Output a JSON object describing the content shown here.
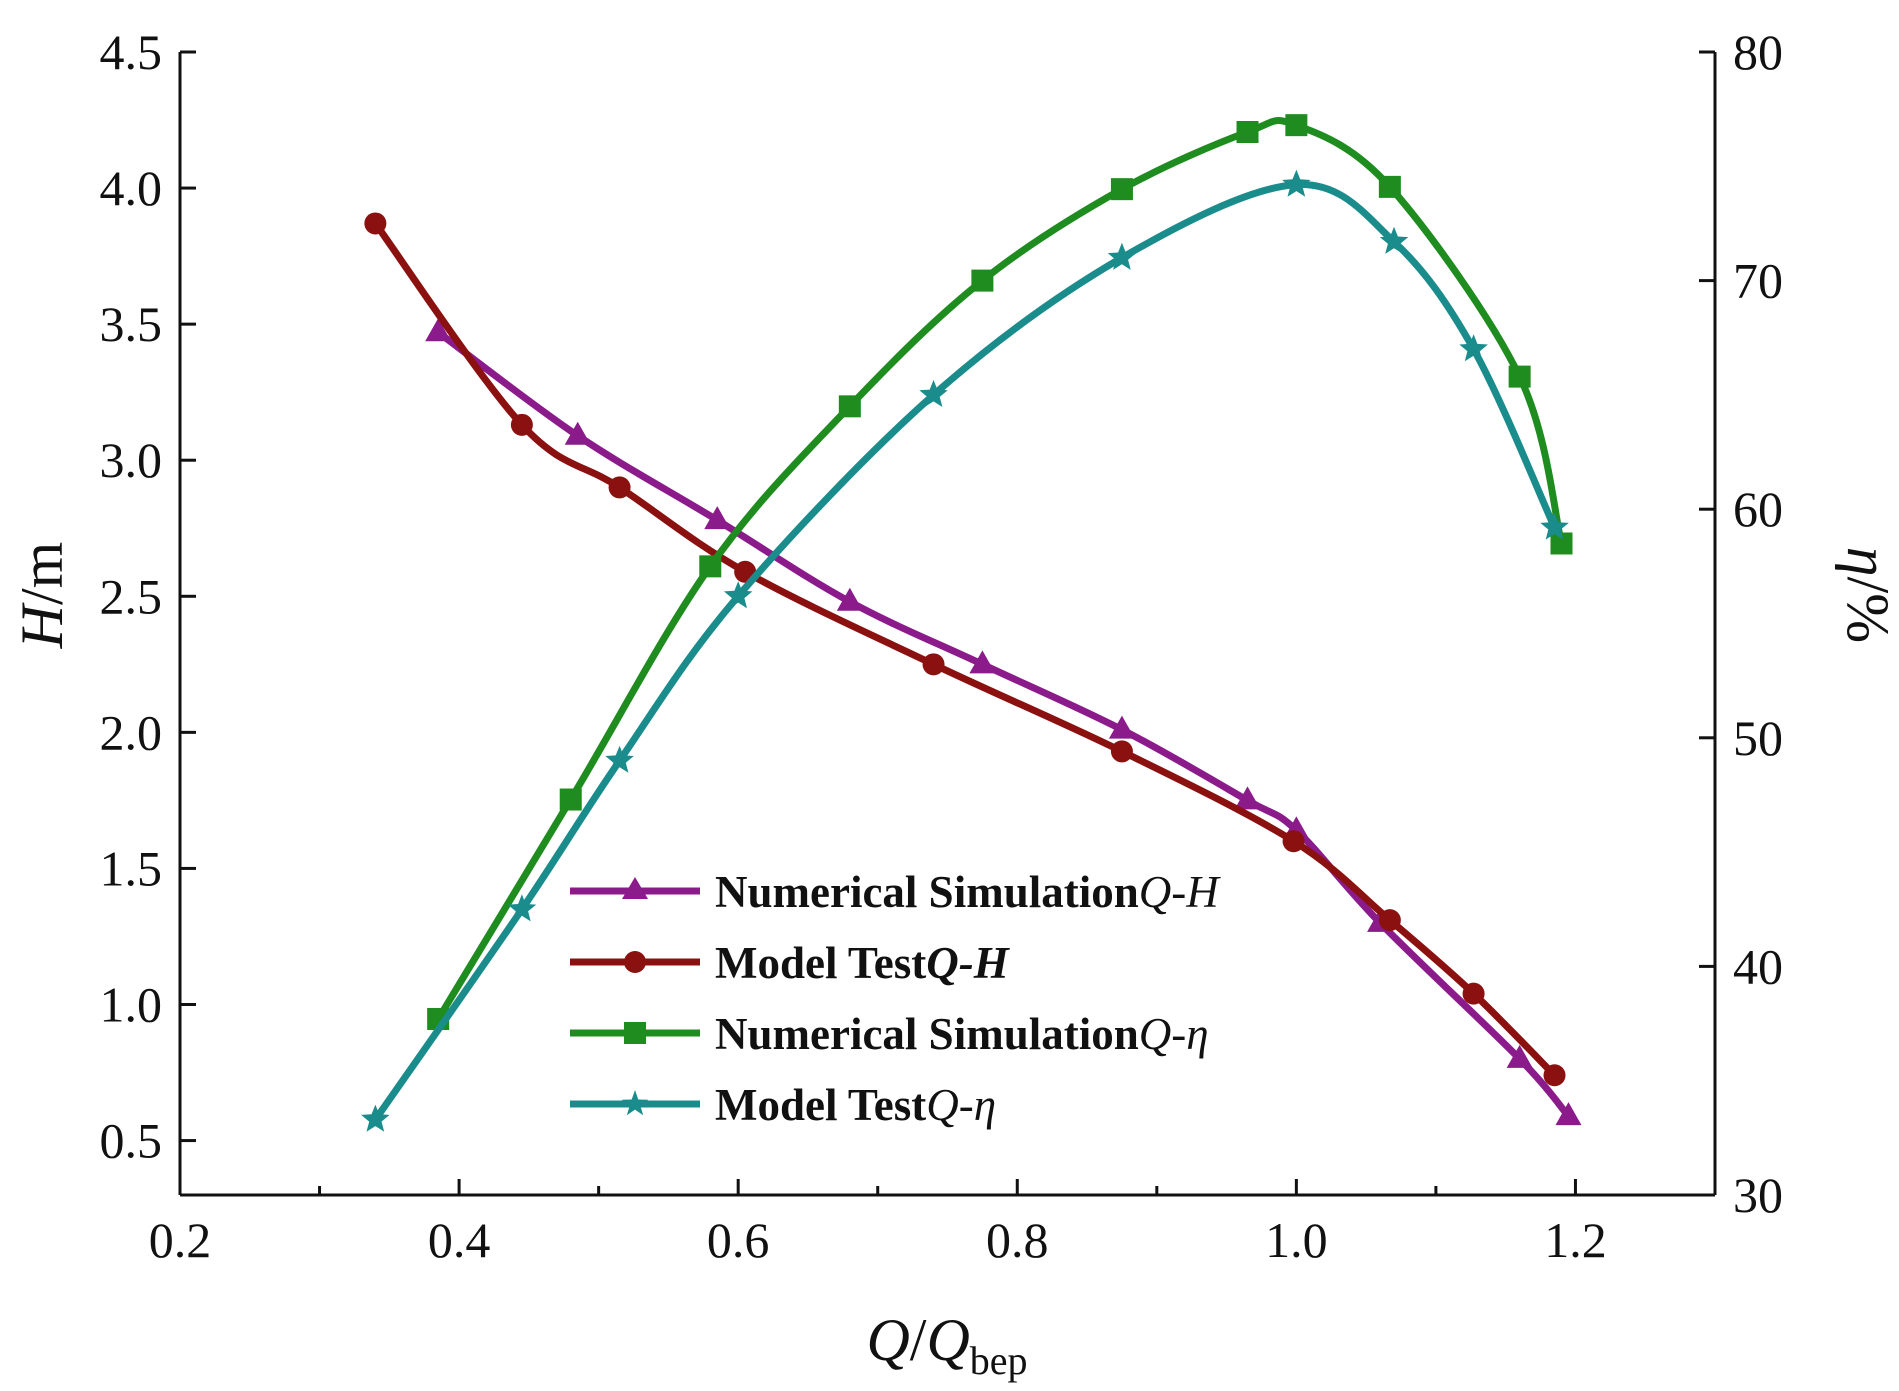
{
  "chart_data": {
    "type": "line",
    "x_axis": {
      "label_main": "Q",
      "label_slash": "/",
      "label_denominator": "Q",
      "label_subscript": "bep",
      "range": [
        0.2,
        1.3
      ],
      "major_ticks": [
        0.2,
        0.4,
        0.6,
        0.8,
        1.0,
        1.2
      ],
      "tick_labels": [
        "0.2",
        "0.4",
        "0.6",
        "0.8",
        "1.0",
        "1.2"
      ],
      "minor_ticks": [
        0.3,
        0.5,
        0.7,
        0.9,
        1.1
      ]
    },
    "y_left_axis": {
      "label_var": "H",
      "label_unit": "/m",
      "range": [
        0.3,
        4.5
      ],
      "major_ticks": [
        0.5,
        1.0,
        1.5,
        2.0,
        2.5,
        3.0,
        3.5,
        4.0,
        4.5
      ],
      "tick_labels": [
        "0.5",
        "1.0",
        "1.5",
        "2.0",
        "2.5",
        "3.0",
        "3.5",
        "4.0",
        "4.5"
      ]
    },
    "y_right_axis": {
      "label_var": "η",
      "label_unit": "/%",
      "range": [
        30,
        80
      ],
      "major_ticks": [
        30,
        40,
        50,
        60,
        70,
        80
      ],
      "tick_labels": [
        "30",
        "40",
        "50",
        "60",
        "70",
        "80"
      ]
    },
    "series": [
      {
        "name": "Numerical Simulation Q-H",
        "legend_text": "Numerical Simulation",
        "legend_suffix": "Q-H",
        "color": "#8b1a8b",
        "marker": "triangle",
        "axis": "left",
        "x": [
          0.385,
          0.485,
          0.585,
          0.68,
          0.775,
          0.875,
          0.965,
          1.0,
          1.06,
          1.16,
          1.195
        ],
        "y": [
          3.47,
          3.09,
          2.78,
          2.48,
          2.25,
          2.01,
          1.75,
          1.64,
          1.3,
          0.8,
          0.59
        ]
      },
      {
        "name": "Model Test Q-H",
        "legend_text": "Model Test",
        "legend_suffix": "Q-H",
        "color": "#8b1010",
        "marker": "circle",
        "axis": "left",
        "x": [
          0.34,
          0.445,
          0.515,
          0.605,
          0.74,
          0.875,
          0.998,
          1.067,
          1.127,
          1.185
        ],
        "y": [
          3.87,
          3.13,
          2.9,
          2.59,
          2.25,
          1.93,
          1.6,
          1.31,
          1.04,
          0.74
        ]
      },
      {
        "name": "Numerical Simulation Q-η",
        "legend_text": "Numerical Simulation",
        "legend_suffix": "Q-η",
        "color": "#1e8c1e",
        "marker": "square",
        "axis": "right",
        "x": [
          0.385,
          0.48,
          0.58,
          0.68,
          0.775,
          0.875,
          0.965,
          1.0,
          1.067,
          1.16,
          1.19
        ],
        "y": [
          37.7,
          47.3,
          57.5,
          64.5,
          70.0,
          74.0,
          76.5,
          76.8,
          74.1,
          65.8,
          58.5
        ]
      },
      {
        "name": "Model Test Q-η",
        "legend_text": "Model Test",
        "legend_suffix": "Q-η",
        "color": "#1a8c8c",
        "marker": "star",
        "axis": "right",
        "x": [
          0.34,
          0.445,
          0.515,
          0.6,
          0.74,
          0.875,
          1.0,
          1.07,
          1.127,
          1.185
        ],
        "y": [
          33.3,
          42.5,
          49.0,
          56.2,
          65.0,
          71.0,
          74.2,
          71.7,
          67.0,
          59.2
        ]
      }
    ],
    "legend_position": "bottom-center"
  }
}
